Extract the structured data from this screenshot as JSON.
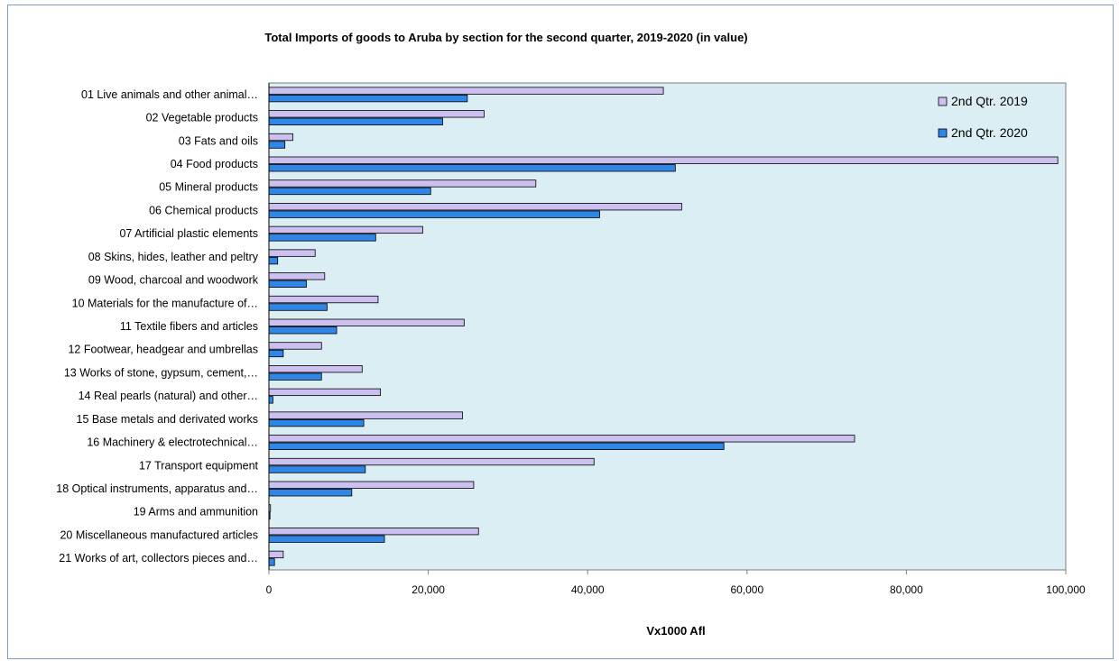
{
  "chart_data": {
    "type": "bar",
    "orientation": "horizontal",
    "title": "Total Imports of goods to Aruba by section for the second quarter, 2019-2020 (in value)",
    "xlabel": "Vx1000 Afl",
    "ylabel": "",
    "xlim": [
      0,
      100000
    ],
    "xticks": [
      0,
      20000,
      40000,
      60000,
      80000,
      100000
    ],
    "xtick_labels": [
      "0",
      "20,000",
      "40,000",
      "60,000",
      "80,000",
      "100,000"
    ],
    "grid": false,
    "legend_position": "top-right",
    "plot_background": "#daeef3",
    "categories": [
      "01 Live animals and other animal…",
      "02 Vegetable products",
      "03 Fats and oils",
      "04 Food products",
      "05 Mineral products",
      "06 Chemical products",
      "07 Artificial plastic elements",
      "08 Skins, hides, leather and peltry",
      "09 Wood, charcoal and woodwork",
      "10 Materials for the manufacture of…",
      "11 Textile fibers and articles",
      "12 Footwear, headgear and umbrellas",
      "13 Works of stone, gypsum, cement,…",
      "14 Real pearls (natural) and other…",
      "15 Base metals and derivated works",
      "16 Machinery & electrotechnical…",
      "17 Transport equipment",
      "18 Optical instruments, apparatus and…",
      "19 Arms and ammunition",
      "20 Miscellaneous manufactured articles",
      "21 Works of art, collectors pieces and…"
    ],
    "series": [
      {
        "name": "2nd Qtr. 2019",
        "color": "#ccc0f0",
        "values": [
          49500,
          27000,
          3000,
          99000,
          33500,
          51800,
          19300,
          5800,
          7000,
          13700,
          24500,
          6600,
          11700,
          14000,
          24300,
          73500,
          40800,
          25700,
          200,
          26300,
          1800
        ]
      },
      {
        "name": "2nd Qtr. 2020",
        "color": "#2f86e6",
        "values": [
          24900,
          21800,
          2000,
          51000,
          20300,
          41500,
          13400,
          1100,
          4700,
          7300,
          8500,
          1800,
          6600,
          500,
          11900,
          57100,
          12100,
          10400,
          100,
          14500,
          700
        ]
      }
    ]
  }
}
